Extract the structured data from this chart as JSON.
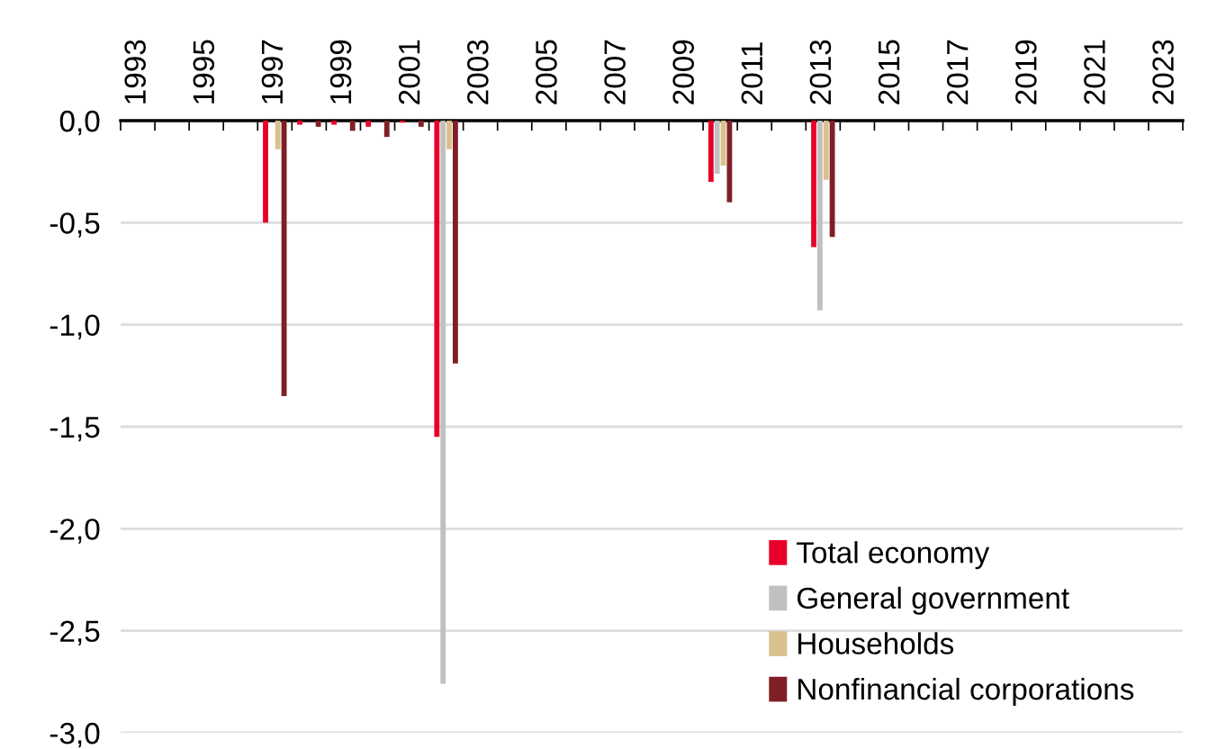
{
  "chart_data": {
    "type": "bar",
    "categories": [
      "1993",
      null,
      "1995",
      null,
      "1997",
      null,
      "1999",
      null,
      "2001",
      null,
      "2003",
      null,
      "2005",
      null,
      "2007",
      null,
      "2009",
      null,
      "2011",
      null,
      "2013",
      null,
      "2015",
      null,
      "2017",
      null,
      "2019",
      null,
      "2021",
      null,
      "2023"
    ],
    "series": [
      {
        "name": "Total economy",
        "color": "#e8002a",
        "values": [
          0,
          0,
          0,
          0,
          -0.5,
          -0.02,
          -0.02,
          -0.03,
          -0.01,
          -1.55,
          0,
          0,
          0,
          0,
          0,
          0,
          0,
          -0.3,
          0,
          0,
          -0.62,
          0,
          0,
          0,
          0,
          0,
          0,
          0,
          0,
          0,
          0
        ]
      },
      {
        "name": "General government",
        "color": "#c0c0c0",
        "values": [
          0,
          0,
          0,
          0,
          0,
          0,
          0,
          0,
          0,
          -2.76,
          0,
          0,
          0,
          0,
          0,
          0,
          0,
          -0.26,
          0,
          0,
          -0.93,
          0,
          0,
          0,
          0,
          0,
          0,
          0,
          0,
          0,
          0
        ]
      },
      {
        "name": "Households",
        "color": "#d9c08c",
        "values": [
          0,
          0,
          0,
          0,
          -0.14,
          0,
          0,
          0,
          0,
          -0.14,
          0,
          0,
          0,
          0,
          0,
          0,
          0,
          -0.22,
          0,
          0,
          -0.29,
          0,
          0,
          0,
          0,
          0,
          0,
          0,
          0,
          0,
          0
        ]
      },
      {
        "name": "Nonfinancial corporations",
        "color": "#7f1f25",
        "values": [
          0,
          0,
          0,
          0,
          -1.35,
          -0.03,
          -0.05,
          -0.08,
          -0.03,
          -1.19,
          0,
          0,
          0,
          0,
          0,
          0,
          0,
          -0.4,
          0,
          0,
          -0.57,
          0,
          0,
          0,
          0,
          0,
          0,
          0,
          0,
          0,
          0
        ]
      }
    ],
    "ylim": [
      -3.0,
      0
    ],
    "yticks": [
      {
        "value": 0,
        "label": "0,0"
      },
      {
        "value": -0.5,
        "label": "-0,5"
      },
      {
        "value": -1.0,
        "label": "-1,0"
      },
      {
        "value": -1.5,
        "label": "-1,5"
      },
      {
        "value": -2.0,
        "label": "-2,0"
      },
      {
        "value": -2.5,
        "label": "-2,5"
      },
      {
        "value": -3.0,
        "label": "-3,0"
      }
    ],
    "grid": "y",
    "legend": "bottom right"
  }
}
